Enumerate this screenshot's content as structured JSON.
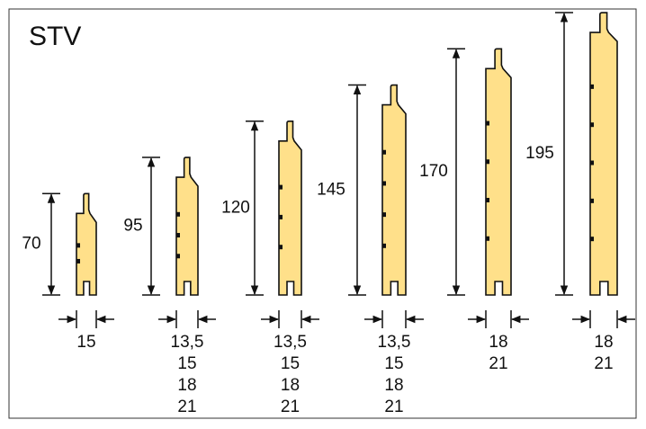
{
  "title": "STV",
  "profiles": [
    {
      "height": 70,
      "thickness": [
        "15"
      ]
    },
    {
      "height": 95,
      "thickness": [
        "13,5",
        "15",
        "18",
        "21"
      ]
    },
    {
      "height": 120,
      "thickness": [
        "13,5",
        "15",
        "18",
        "21"
      ]
    },
    {
      "height": 145,
      "thickness": [
        "13,5",
        "15",
        "18",
        "21"
      ]
    },
    {
      "height": 170,
      "thickness": [
        "18",
        "21"
      ]
    },
    {
      "height": 195,
      "thickness": [
        "18",
        "21"
      ]
    }
  ]
}
